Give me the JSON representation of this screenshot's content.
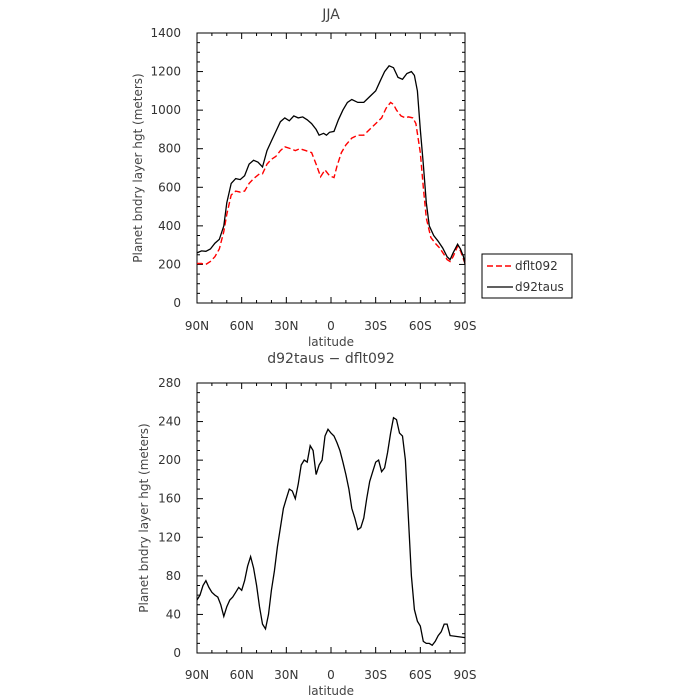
{
  "chart_data": [
    {
      "type": "line",
      "title": "JJA",
      "xlabel": "latitude",
      "ylabel": "Planet bndry layer hgt (meters)",
      "xticks": [
        "90N",
        "60N",
        "30N",
        "0",
        "30S",
        "60S",
        "90S"
      ],
      "yticks": [
        "0",
        "200",
        "400",
        "600",
        "800",
        "1000",
        "1200",
        "1400"
      ],
      "ylim": [
        0,
        1400
      ],
      "x_range": [
        "90N",
        "90S"
      ],
      "legend_position": "right",
      "series": [
        {
          "name": "dflt092",
          "color": "#ff0000",
          "dash": "dashed",
          "points": [
            [
              90,
              205
            ],
            [
              87,
              205
            ],
            [
              84,
              200
            ],
            [
              81,
              215
            ],
            [
              78,
              240
            ],
            [
              75,
              280
            ],
            [
              72,
              370
            ],
            [
              70,
              460
            ],
            [
              67,
              560
            ],
            [
              64,
              580
            ],
            [
              61,
              575
            ],
            [
              58,
              580
            ],
            [
              55,
              620
            ],
            [
              52,
              645
            ],
            [
              48,
              670
            ],
            [
              46,
              670
            ],
            [
              43,
              720
            ],
            [
              40,
              745
            ],
            [
              37,
              760
            ],
            [
              34,
              790
            ],
            [
              31,
              810
            ],
            [
              27,
              800
            ],
            [
              24,
              790
            ],
            [
              21,
              800
            ],
            [
              17,
              790
            ],
            [
              13,
              780
            ],
            [
              10,
              720
            ],
            [
              7,
              655
            ],
            [
              4,
              690
            ],
            [
              1,
              660
            ],
            [
              -2,
              650
            ],
            [
              -4,
              710
            ],
            [
              -7,
              780
            ],
            [
              -10,
              820
            ],
            [
              -14,
              855
            ],
            [
              -18,
              870
            ],
            [
              -22,
              870
            ],
            [
              -26,
              900
            ],
            [
              -30,
              930
            ],
            [
              -34,
              960
            ],
            [
              -37,
              1010
            ],
            [
              -40,
              1040
            ],
            [
              -42,
              1030
            ],
            [
              -44,
              1000
            ],
            [
              -47,
              970
            ],
            [
              -50,
              960
            ],
            [
              -52,
              965
            ],
            [
              -55,
              960
            ],
            [
              -57,
              930
            ],
            [
              -60,
              780
            ],
            [
              -62,
              600
            ],
            [
              -64,
              440
            ],
            [
              -67,
              340
            ],
            [
              -70,
              310
            ],
            [
              -73,
              285
            ],
            [
              -76,
              250
            ],
            [
              -78,
              225
            ],
            [
              -80,
              215
            ],
            [
              -82,
              240
            ],
            [
              -85,
              295
            ],
            [
              -87,
              270
            ],
            [
              -90,
              205
            ]
          ]
        },
        {
          "name": "d92taus",
          "color": "#000000",
          "dash": "solid",
          "points": [
            [
              90,
              260
            ],
            [
              87,
              270
            ],
            [
              84,
              268
            ],
            [
              81,
              280
            ],
            [
              78,
              310
            ],
            [
              75,
              330
            ],
            [
              72,
              400
            ],
            [
              70,
              520
            ],
            [
              67,
              620
            ],
            [
              64,
              645
            ],
            [
              61,
              640
            ],
            [
              58,
              660
            ],
            [
              55,
              720
            ],
            [
              52,
              740
            ],
            [
              49,
              730
            ],
            [
              46,
              705
            ],
            [
              43,
              790
            ],
            [
              40,
              840
            ],
            [
              37,
              890
            ],
            [
              34,
              940
            ],
            [
              31,
              960
            ],
            [
              28,
              945
            ],
            [
              25,
              970
            ],
            [
              22,
              960
            ],
            [
              19,
              965
            ],
            [
              16,
              950
            ],
            [
              13,
              930
            ],
            [
              10,
              900
            ],
            [
              8,
              870
            ],
            [
              5,
              880
            ],
            [
              3,
              870
            ],
            [
              1,
              885
            ],
            [
              -2,
              890
            ],
            [
              -5,
              950
            ],
            [
              -8,
              1000
            ],
            [
              -11,
              1040
            ],
            [
              -14,
              1055
            ],
            [
              -18,
              1040
            ],
            [
              -22,
              1040
            ],
            [
              -26,
              1070
            ],
            [
              -30,
              1100
            ],
            [
              -33,
              1150
            ],
            [
              -36,
              1200
            ],
            [
              -39,
              1230
            ],
            [
              -42,
              1220
            ],
            [
              -45,
              1170
            ],
            [
              -48,
              1160
            ],
            [
              -51,
              1190
            ],
            [
              -54,
              1200
            ],
            [
              -56,
              1180
            ],
            [
              -58,
              1100
            ],
            [
              -60,
              900
            ],
            [
              -62,
              720
            ],
            [
              -64,
              520
            ],
            [
              -66,
              400
            ],
            [
              -69,
              350
            ],
            [
              -72,
              320
            ],
            [
              -75,
              285
            ],
            [
              -78,
              240
            ],
            [
              -80,
              225
            ],
            [
              -82,
              260
            ],
            [
              -85,
              305
            ],
            [
              -87,
              280
            ],
            [
              -89,
              240
            ],
            [
              -90,
              200
            ]
          ]
        }
      ]
    },
    {
      "type": "line",
      "title": "d92taus − dflt092",
      "xlabel": "latitude",
      "ylabel": "Planet bndry layer hgt (meters)",
      "xticks": [
        "90N",
        "60N",
        "30N",
        "0",
        "30S",
        "60S",
        "90S"
      ],
      "yticks": [
        "0",
        "40",
        "80",
        "120",
        "160",
        "200",
        "240",
        "280"
      ],
      "ylim": [
        0,
        280
      ],
      "x_range": [
        "90N",
        "90S"
      ],
      "series": [
        {
          "color": "#000000",
          "dash": "solid",
          "points": [
            [
              90,
              55
            ],
            [
              88,
              60
            ],
            [
              86,
              70
            ],
            [
              84,
              75
            ],
            [
              82,
              68
            ],
            [
              80,
              63
            ],
            [
              78,
              60
            ],
            [
              76,
              58
            ],
            [
              74,
              50
            ],
            [
              72,
              38
            ],
            [
              70,
              48
            ],
            [
              68,
              55
            ],
            [
              66,
              58
            ],
            [
              64,
              63
            ],
            [
              62,
              68
            ],
            [
              60,
              65
            ],
            [
              58,
              75
            ],
            [
              56,
              90
            ],
            [
              54,
              100
            ],
            [
              52,
              88
            ],
            [
              50,
              70
            ],
            [
              48,
              48
            ],
            [
              46,
              30
            ],
            [
              44,
              25
            ],
            [
              42,
              40
            ],
            [
              40,
              65
            ],
            [
              38,
              85
            ],
            [
              36,
              110
            ],
            [
              34,
              130
            ],
            [
              32,
              150
            ],
            [
              30,
              160
            ],
            [
              28,
              170
            ],
            [
              26,
              168
            ],
            [
              24,
              160
            ],
            [
              22,
              175
            ],
            [
              20,
              195
            ],
            [
              18,
              200
            ],
            [
              16,
              198
            ],
            [
              14,
              215
            ],
            [
              12,
              210
            ],
            [
              10,
              185
            ],
            [
              8,
              195
            ],
            [
              6,
              200
            ],
            [
              4,
              225
            ],
            [
              2,
              232
            ],
            [
              0,
              228
            ],
            [
              -2,
              225
            ],
            [
              -4,
              218
            ],
            [
              -6,
              210
            ],
            [
              -8,
              198
            ],
            [
              -10,
              185
            ],
            [
              -12,
              170
            ],
            [
              -14,
              150
            ],
            [
              -16,
              140
            ],
            [
              -18,
              128
            ],
            [
              -20,
              130
            ],
            [
              -22,
              140
            ],
            [
              -24,
              160
            ],
            [
              -26,
              178
            ],
            [
              -28,
              188
            ],
            [
              -30,
              198
            ],
            [
              -32,
              200
            ],
            [
              -34,
              188
            ],
            [
              -36,
              192
            ],
            [
              -38,
              208
            ],
            [
              -40,
              228
            ],
            [
              -42,
              244
            ],
            [
              -44,
              242
            ],
            [
              -46,
              228
            ],
            [
              -48,
              225
            ],
            [
              -50,
              200
            ],
            [
              -52,
              140
            ],
            [
              -54,
              80
            ],
            [
              -56,
              45
            ],
            [
              -58,
              33
            ],
            [
              -60,
              28
            ],
            [
              -62,
              12
            ],
            [
              -64,
              10
            ],
            [
              -66,
              10
            ],
            [
              -68,
              8
            ],
            [
              -70,
              12
            ],
            [
              -72,
              18
            ],
            [
              -74,
              22
            ],
            [
              -76,
              30
            ],
            [
              -78,
              30
            ],
            [
              -80,
              18
            ],
            [
              -90,
              16
            ]
          ]
        }
      ]
    }
  ]
}
